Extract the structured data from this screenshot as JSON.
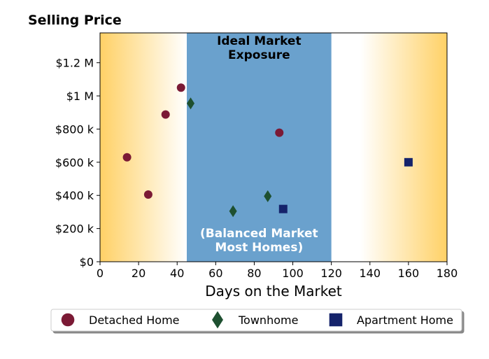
{
  "chart_data": {
    "type": "scatter",
    "title": "Selling Price",
    "xlabel": "Days on the Market",
    "ylabel": "",
    "xlim": [
      0,
      180
    ],
    "ylim": [
      0,
      1380000
    ],
    "x_ticks": [
      0,
      20,
      40,
      60,
      80,
      100,
      120,
      140,
      160,
      180
    ],
    "x_tick_labels": [
      "0",
      "20",
      "40",
      "60",
      "80",
      "100",
      "120",
      "140",
      "160",
      "180"
    ],
    "y_ticks": [
      0,
      200000,
      400000,
      600000,
      800000,
      1000000,
      1200000
    ],
    "y_tick_labels": [
      "$0",
      "$200 k",
      "$400 k",
      "$600 k",
      "$800 k",
      "$1 M",
      "$1.2 M"
    ],
    "grid": false,
    "band": {
      "x_range": [
        45,
        120
      ],
      "color": "#6aa1cd",
      "top_label_lines": [
        "Ideal Market",
        "Exposure"
      ],
      "bottom_label_lines": [
        "(Balanced Market",
        "Most Homes)"
      ]
    },
    "background_gradient": {
      "edge_color": "#ffd166",
      "center_color": "#ffffff"
    },
    "legend_position": "bottom-center",
    "series": [
      {
        "name": "Detached Home",
        "marker": "circle",
        "color": "#7b1a35",
        "points": [
          [
            14,
            630000
          ],
          [
            25,
            405000
          ],
          [
            34,
            888000
          ],
          [
            42,
            1050000
          ],
          [
            93,
            778000
          ]
        ]
      },
      {
        "name": "Townhome",
        "marker": "diamond",
        "color": "#1e5030",
        "points": [
          [
            47,
            955000
          ],
          [
            69,
            305000
          ],
          [
            87,
            395000
          ]
        ]
      },
      {
        "name": "Apartment Home",
        "marker": "square",
        "color": "#15236b",
        "points": [
          [
            95,
            318000
          ],
          [
            160,
            600000
          ]
        ]
      }
    ]
  }
}
